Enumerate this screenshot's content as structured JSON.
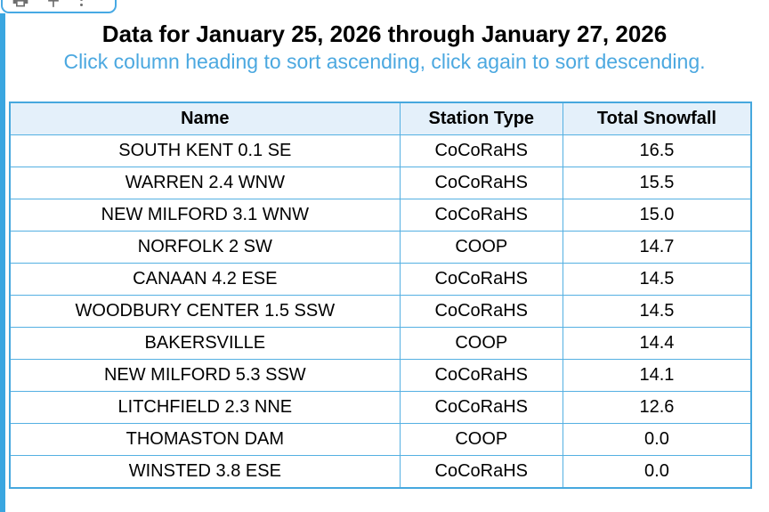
{
  "toolbar": {
    "icons": [
      {
        "name": "print-icon"
      },
      {
        "name": "pin-icon"
      },
      {
        "name": "more-vert-icon"
      }
    ]
  },
  "header": {
    "title": "Data for January 25, 2026 through January 27, 2026",
    "subtitle": "Click column heading to sort ascending, click again to sort descending."
  },
  "table": {
    "columns": [
      "Name",
      "Station Type",
      "Total Snowfall"
    ],
    "rows": [
      [
        "SOUTH KENT 0.1 SE",
        "CoCoRaHS",
        "16.5"
      ],
      [
        "WARREN 2.4 WNW",
        "CoCoRaHS",
        "15.5"
      ],
      [
        "NEW MILFORD 3.1 WNW",
        "CoCoRaHS",
        "15.0"
      ],
      [
        "NORFOLK 2 SW",
        "COOP",
        "14.7"
      ],
      [
        "CANAAN 4.2 ESE",
        "CoCoRaHS",
        "14.5"
      ],
      [
        "WOODBURY CENTER 1.5 SSW",
        "CoCoRaHS",
        "14.5"
      ],
      [
        "BAKERSVILLE",
        "COOP",
        "14.4"
      ],
      [
        "NEW MILFORD 5.3 SSW",
        "CoCoRaHS",
        "14.1"
      ],
      [
        "LITCHFIELD 2.3 NNE",
        "CoCoRaHS",
        "12.6"
      ],
      [
        "THOMASTON DAM",
        "COOP",
        "0.0"
      ],
      [
        "WINSTED 3.8 ESE",
        "CoCoRaHS",
        "0.0"
      ]
    ]
  },
  "colors": {
    "accent_bar": "#3aa6e0",
    "table_border": "#54b0e2",
    "table_outer_border": "#46a8de",
    "header_bg": "#e4f0fa",
    "subtitle_text": "#4ba8e0",
    "toolbar_border": "#47a9e4",
    "icon_gray": "#6e6e6e"
  }
}
